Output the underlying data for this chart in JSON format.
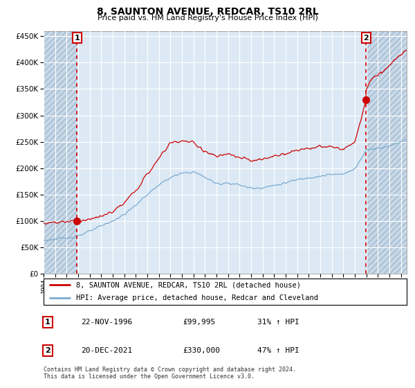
{
  "title": "8, SAUNTON AVENUE, REDCAR, TS10 2RL",
  "subtitle": "Price paid vs. HM Land Registry's House Price Index (HPI)",
  "legend_line1": "8, SAUNTON AVENUE, REDCAR, TS10 2RL (detached house)",
  "legend_line2": "HPI: Average price, detached house, Redcar and Cleveland",
  "footnote": "Contains HM Land Registry data © Crown copyright and database right 2024.\nThis data is licensed under the Open Government Licence v3.0.",
  "table_rows": [
    {
      "num": "1",
      "date": "22-NOV-1996",
      "price": "£99,995",
      "hpi": "31% ↑ HPI"
    },
    {
      "num": "2",
      "date": "20-DEC-2021",
      "price": "£330,000",
      "hpi": "47% ↑ HPI"
    }
  ],
  "hpi_color": "#7aaad0",
  "price_color": "#cc0000",
  "marker_color": "#cc0000",
  "annotation_box_color": "#cc0000",
  "chart_bg_color": "#dce9f5",
  "hatch_facecolor": "#c8d8e8",
  "grid_color": "#ffffff",
  "ylim": [
    0,
    460000
  ],
  "yticks": [
    0,
    50000,
    100000,
    150000,
    200000,
    250000,
    300000,
    350000,
    400000,
    450000
  ],
  "xlim_start": 1994.0,
  "xlim_end": 2025.5,
  "marker1_x": 1996.9,
  "marker1_y": 99995,
  "marker2_x": 2021.97,
  "marker2_y": 330000,
  "vline1_x": 1996.9,
  "vline2_x": 2021.97
}
